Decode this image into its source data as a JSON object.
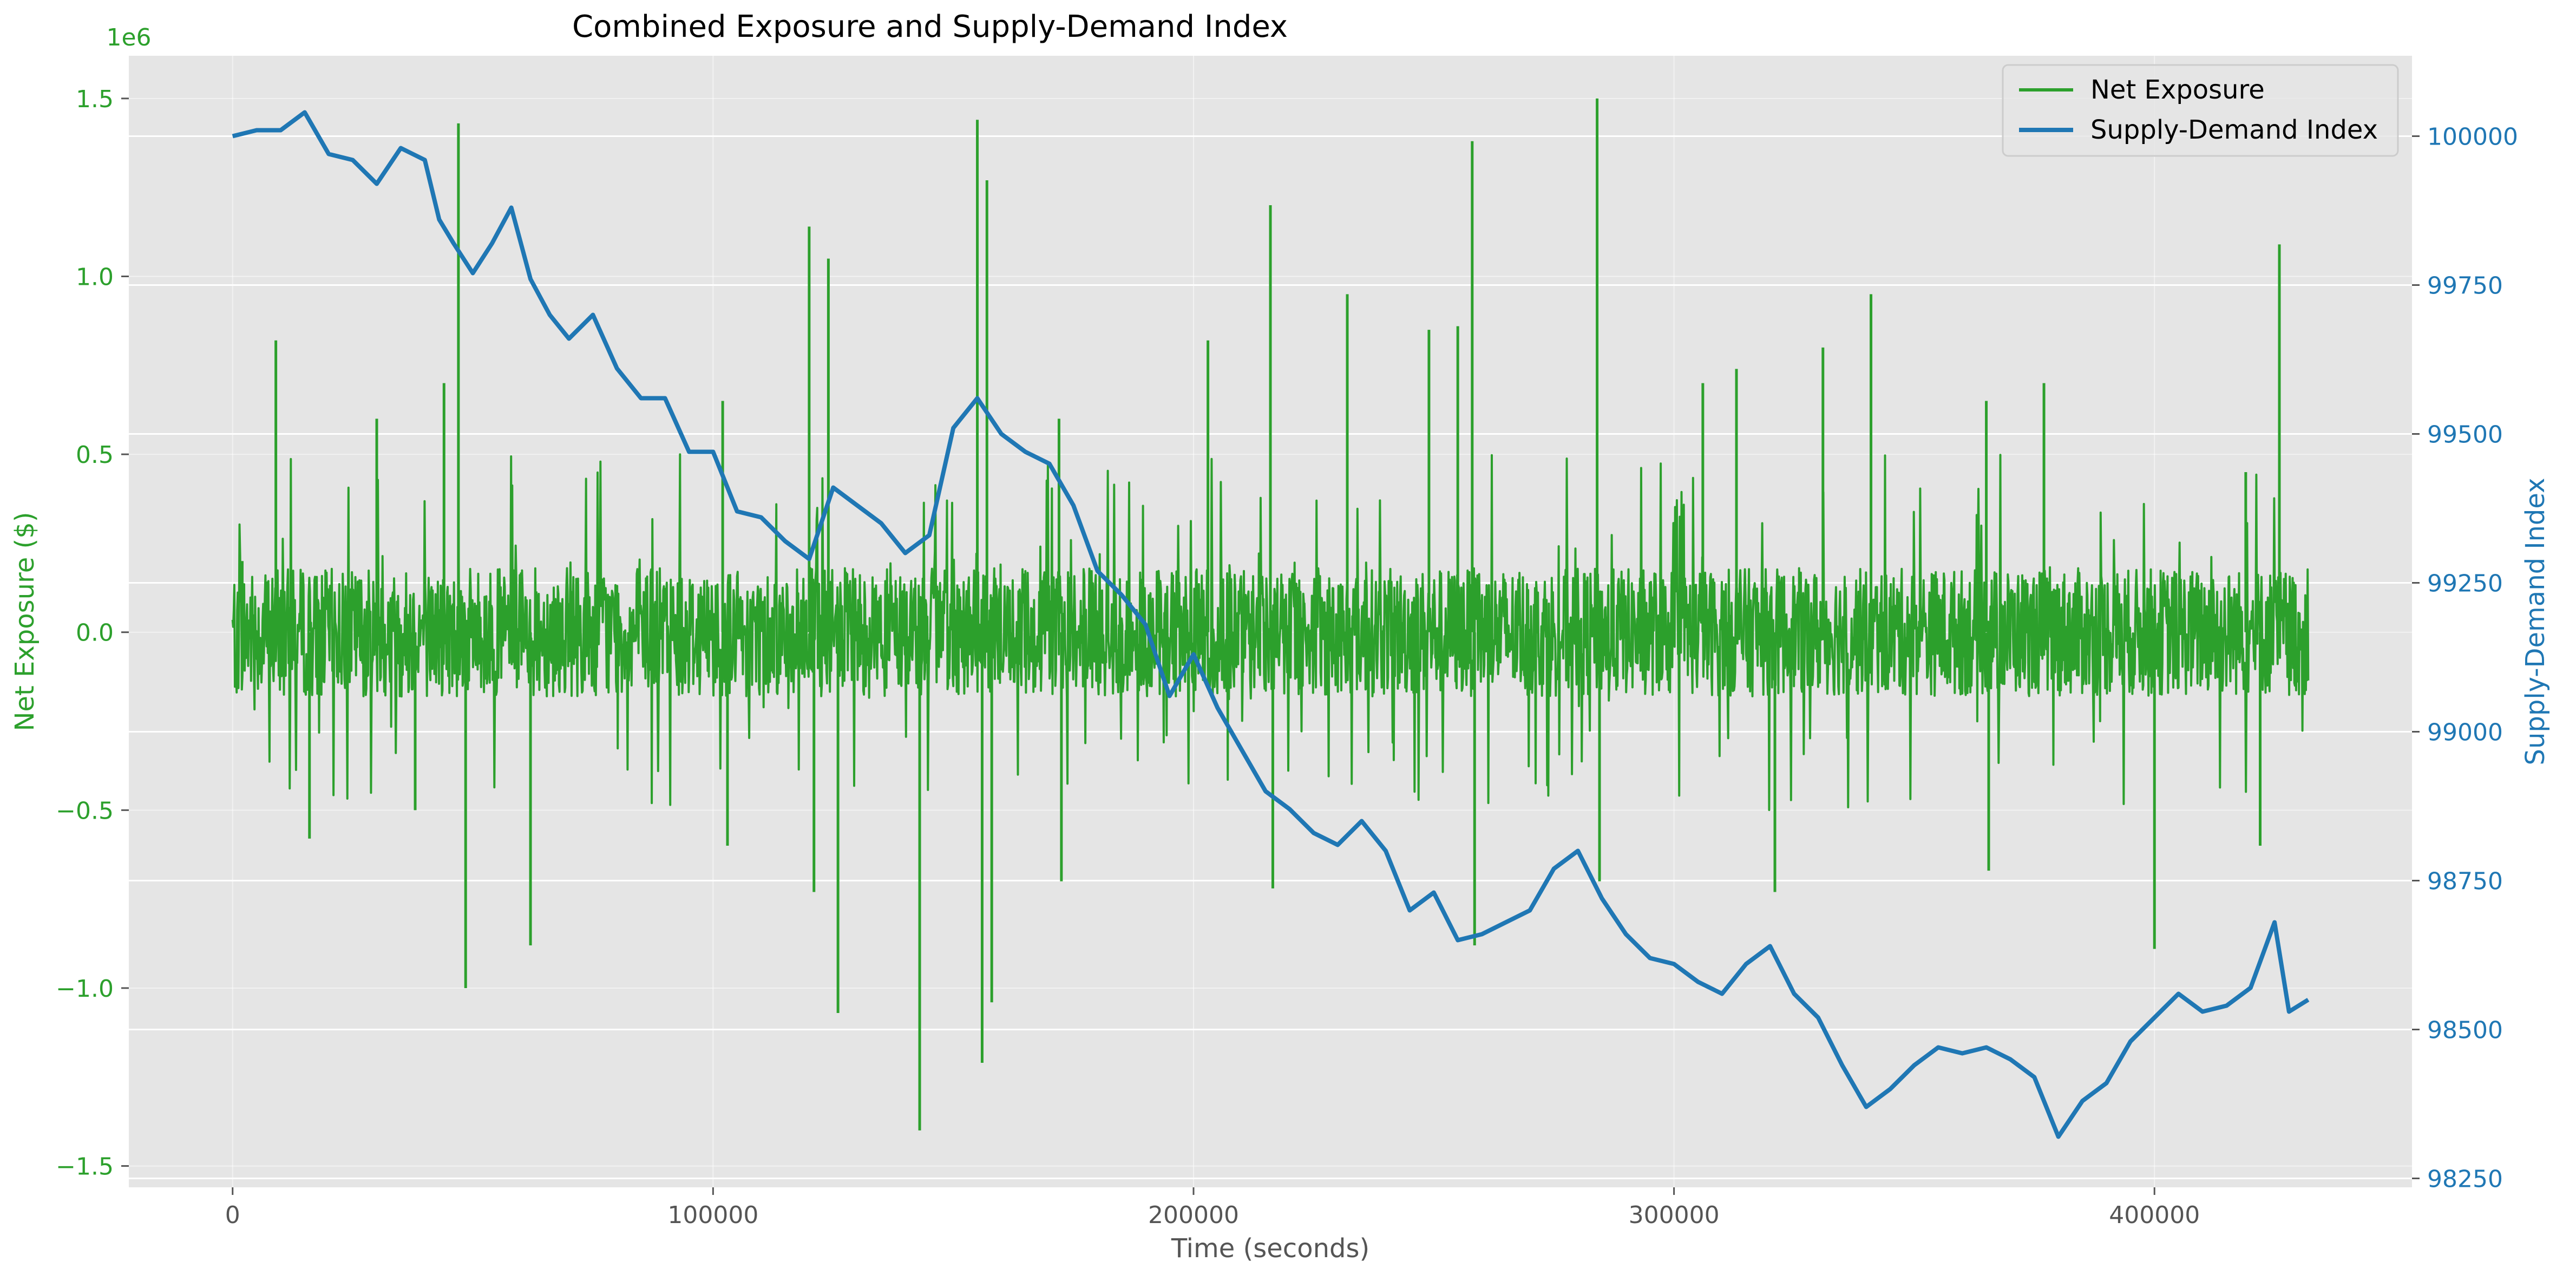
{
  "chart_data": {
    "type": "line",
    "title": "Combined Exposure and Supply-Demand Index",
    "xlabel": "Time (seconds)",
    "ylabel_left": "Net Exposure ($)",
    "ylabel_right": "Supply-Demand Index",
    "left_axis_offset_label": "1e6",
    "xlim": [
      -21600,
      453600
    ],
    "ylim_left": [
      -1.56,
      1.62
    ],
    "ylim_right": [
      98235,
      100135
    ],
    "x_ticks": [
      0,
      100000,
      200000,
      300000,
      400000
    ],
    "x_tick_labels": [
      "0",
      "100000",
      "200000",
      "300000",
      "400000"
    ],
    "y_left_ticks": [
      -1.5,
      -1.0,
      -0.5,
      0.0,
      0.5,
      1.0,
      1.5
    ],
    "y_left_tick_labels": [
      "−1.5",
      "−1.0",
      "−0.5",
      "0.0",
      "0.5",
      "1.0",
      "1.5"
    ],
    "y_right_ticks": [
      98250,
      98500,
      98750,
      99000,
      99250,
      99500,
      99750,
      100000
    ],
    "y_right_tick_labels": [
      "98250",
      "98500",
      "98750",
      "99000",
      "99250",
      "99500",
      "99750",
      "100000"
    ],
    "grid": true,
    "legend_position": "top-right",
    "colors": {
      "net_exposure": "#2ca02c",
      "supply_demand": "#1f77b4",
      "plot_bg": "#e5e5e5",
      "grid": "#ffffff",
      "tick_text": "#555555"
    },
    "series": [
      {
        "name": "Net Exposure",
        "axis": "left",
        "units": "millions of dollars",
        "noise_band": 0.18,
        "x_range": [
          0,
          432000
        ],
        "peaks": [
          [
            2000,
            0.2
          ],
          [
            9000,
            0.82
          ],
          [
            16000,
            -0.58
          ],
          [
            30000,
            0.6
          ],
          [
            38000,
            -0.5
          ],
          [
            44000,
            0.7
          ],
          [
            47000,
            1.43
          ],
          [
            48500,
            -1.0
          ],
          [
            62000,
            -0.88
          ],
          [
            102000,
            0.65
          ],
          [
            103000,
            -0.6
          ],
          [
            120000,
            1.14
          ],
          [
            121000,
            -0.73
          ],
          [
            124000,
            1.05
          ],
          [
            126000,
            -1.07
          ],
          [
            143000,
            -1.4
          ],
          [
            155000,
            1.44
          ],
          [
            156000,
            -1.21
          ],
          [
            157000,
            1.27
          ],
          [
            158000,
            -1.04
          ],
          [
            172000,
            0.6
          ],
          [
            172500,
            -0.7
          ],
          [
            203000,
            0.82
          ],
          [
            216000,
            1.2
          ],
          [
            216500,
            -0.72
          ],
          [
            232000,
            0.95
          ],
          [
            249000,
            0.85
          ],
          [
            255000,
            0.86
          ],
          [
            258000,
            1.38
          ],
          [
            258500,
            -0.88
          ],
          [
            284000,
            1.5
          ],
          [
            284500,
            -0.7
          ],
          [
            306000,
            0.7
          ],
          [
            313000,
            0.74
          ],
          [
            321000,
            -0.73
          ],
          [
            331000,
            0.8
          ],
          [
            341000,
            0.95
          ],
          [
            365000,
            0.65
          ],
          [
            365500,
            -0.67
          ],
          [
            377000,
            0.7
          ],
          [
            400000,
            -0.89
          ],
          [
            419000,
            0.45
          ],
          [
            422000,
            -0.6
          ],
          [
            426000,
            1.09
          ]
        ]
      },
      {
        "name": "Supply-Demand Index",
        "axis": "right",
        "x": [
          0,
          5000,
          10000,
          15000,
          20000,
          25000,
          30000,
          35000,
          40000,
          43000,
          46000,
          50000,
          54000,
          58000,
          62000,
          66000,
          70000,
          75000,
          80000,
          85000,
          90000,
          95000,
          100000,
          105000,
          110000,
          115000,
          120000,
          125000,
          130000,
          135000,
          140000,
          145000,
          150000,
          155000,
          160000,
          165000,
          170000,
          175000,
          180000,
          185000,
          190000,
          195000,
          200000,
          205000,
          210000,
          215000,
          220000,
          225000,
          230000,
          235000,
          240000,
          245000,
          250000,
          255000,
          260000,
          265000,
          270000,
          275000,
          280000,
          285000,
          290000,
          295000,
          300000,
          305000,
          310000,
          315000,
          320000,
          325000,
          330000,
          335000,
          340000,
          345000,
          350000,
          355000,
          360000,
          365000,
          370000,
          375000,
          380000,
          385000,
          390000,
          395000,
          400000,
          405000,
          410000,
          415000,
          420000,
          425000,
          428000,
          432000
        ],
        "y": [
          100000,
          100010,
          100010,
          100040,
          99970,
          99960,
          99920,
          99980,
          99960,
          99860,
          99820,
          99770,
          99820,
          99880,
          99760,
          99700,
          99660,
          99700,
          99610,
          99560,
          99560,
          99470,
          99470,
          99370,
          99360,
          99320,
          99290,
          99410,
          99380,
          99350,
          99300,
          99330,
          99510,
          99560,
          99500,
          99470,
          99450,
          99380,
          99270,
          99230,
          99180,
          99060,
          99130,
          99040,
          98970,
          98900,
          98870,
          98830,
          98810,
          98850,
          98800,
          98700,
          98730,
          98650,
          98660,
          98680,
          98700,
          98770,
          98800,
          98720,
          98660,
          98620,
          98610,
          98580,
          98560,
          98610,
          98640,
          98560,
          98520,
          98440,
          98370,
          98400,
          98440,
          98470,
          98460,
          98470,
          98450,
          98420,
          98320,
          98380,
          98410,
          98480,
          98520,
          98560,
          98530,
          98540,
          98570,
          98680,
          98530,
          98550
        ]
      }
    ]
  }
}
